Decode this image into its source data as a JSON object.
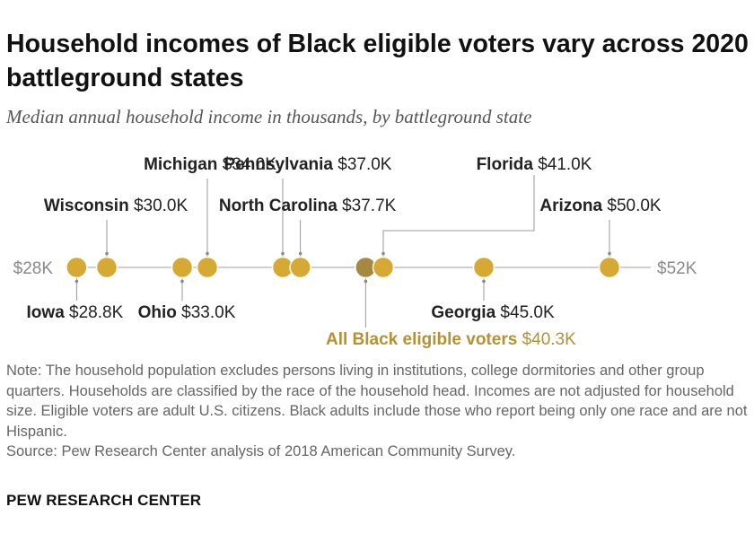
{
  "title": "Household incomes of Black eligible voters vary across 2020 battleground states",
  "subtitle": "Median annual household income in thousands, by battleground state",
  "note": "Note: The household population excludes persons living in institutions, college dormitories and other group quarters. Households are classified by the race of the household head. Incomes are not adjusted for household size. Eligible voters are adult U.S. citizens. Black adults include those who report being only one race and are not Hispanic.",
  "source": "Source: Pew Research Center analysis of 2018 American Community Survey.",
  "footer": "PEW RESEARCH CENTER",
  "chart_data": {
    "type": "scatter",
    "axis_unit": "thousands of dollars",
    "xlim": [
      28,
      52
    ],
    "axis_labels": {
      "min": "$28K",
      "max": "$52K"
    },
    "colors": {
      "state": "#d6a935",
      "all": "#a68840",
      "all_label": "#b39134",
      "axis": "#cfcfcf",
      "leader": "#999999"
    },
    "points": [
      {
        "name": "Iowa",
        "value": 28.8,
        "value_label": "$28.8K",
        "group": "state"
      },
      {
        "name": "Wisconsin",
        "value": 30.0,
        "value_label": "$30.0K",
        "group": "state"
      },
      {
        "name": "Ohio",
        "value": 33.0,
        "value_label": "$33.0K",
        "group": "state"
      },
      {
        "name": "Michigan",
        "value": 34.0,
        "value_label": "$34.0K",
        "group": "state"
      },
      {
        "name": "Pennsylvania",
        "value": 37.0,
        "value_label": "$37.0K",
        "group": "state"
      },
      {
        "name": "North Carolina",
        "value": 37.7,
        "value_label": "$37.7K",
        "group": "state"
      },
      {
        "name": "All Black eligible voters",
        "value": 40.3,
        "value_label": "$40.3K",
        "group": "all"
      },
      {
        "name": "Florida",
        "value": 41.0,
        "value_label": "$41.0K",
        "group": "state"
      },
      {
        "name": "Georgia",
        "value": 45.0,
        "value_label": "$45.0K",
        "group": "state"
      },
      {
        "name": "Arizona",
        "value": 50.0,
        "value_label": "$50.0K",
        "group": "state"
      }
    ]
  }
}
